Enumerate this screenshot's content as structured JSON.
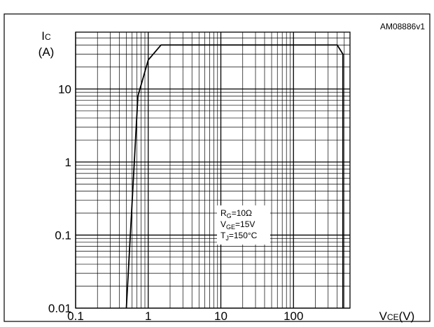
{
  "figure": {
    "code": "AM08886v1"
  },
  "chart_data": {
    "type": "line",
    "scale": {
      "x": "log",
      "y": "log"
    },
    "xlim": [
      0.1,
      600
    ],
    "ylim": [
      0.01,
      60
    ],
    "grid": true,
    "ylabel": {
      "sym": "I",
      "sub": "C",
      "unit": "(A)"
    },
    "xlabel": {
      "sym": "V",
      "sub": "CE",
      "unit": "(V)"
    },
    "x_ticks": [
      {
        "value": 0.1,
        "label": "0.1"
      },
      {
        "value": 1,
        "label": "1"
      },
      {
        "value": 10,
        "label": "10"
      },
      {
        "value": 100,
        "label": "100"
      }
    ],
    "y_ticks": [
      {
        "value": 0.01,
        "label": "0.01"
      },
      {
        "value": 0.1,
        "label": "0.1"
      },
      {
        "value": 1,
        "label": "1"
      },
      {
        "value": 10,
        "label": "10"
      }
    ],
    "annotation": [
      {
        "sym": "R",
        "sub": "G",
        "rest": "=10Ω"
      },
      {
        "sym": "V",
        "sub": "GE",
        "rest": "=15V"
      },
      {
        "sym": "T",
        "sub": "J",
        "rest": "=150°C"
      }
    ],
    "series": [
      {
        "points": [
          [
            0.5,
            0.01
          ],
          [
            0.72,
            8
          ],
          [
            1.0,
            25
          ],
          [
            1.5,
            40
          ],
          [
            400,
            40
          ],
          [
            480,
            30
          ],
          [
            480,
            0.01
          ]
        ]
      }
    ]
  }
}
